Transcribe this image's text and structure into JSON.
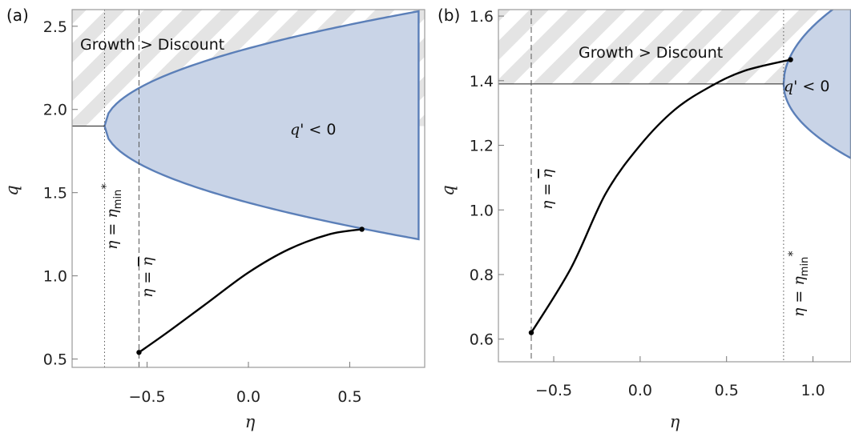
{
  "chart_data": [
    {
      "panel_label": "(a)",
      "type": "line",
      "xlabel": "η",
      "ylabel": "q",
      "xlim": [
        -0.87,
        0.87
      ],
      "ylim": [
        0.45,
        2.6
      ],
      "xticks": [
        "-0.5",
        "0.0",
        "0.5"
      ],
      "xtick_values": [
        -0.5,
        0.0,
        0.5
      ],
      "yticks": [
        "0.5",
        "1.0",
        "1.5",
        "2.0",
        "2.5"
      ],
      "ytick_values": [
        0.5,
        1.0,
        1.5,
        2.0,
        2.5
      ],
      "hatch_label": "Growth > Discount",
      "hatch_threshold_q": 1.9,
      "region_label": "q' < 0",
      "region": {
        "vertex": [
          -0.71,
          1.9
        ],
        "x_end": 0.84,
        "upper_q_at_end": 2.59,
        "lower_q_at_end": 1.22
      },
      "vlines": [
        {
          "x": -0.71,
          "style": "dotted",
          "label": "η = ηmin*"
        },
        {
          "x": -0.54,
          "style": "dashed",
          "label": "η = η̄"
        }
      ],
      "curve": {
        "points": [
          [
            -0.54,
            0.54
          ],
          [
            -0.4,
            0.66
          ],
          [
            -0.2,
            0.84
          ],
          [
            0.0,
            1.02
          ],
          [
            0.2,
            1.16
          ],
          [
            0.4,
            1.25
          ],
          [
            0.56,
            1.28
          ]
        ],
        "start": [
          -0.54,
          0.54
        ],
        "end": [
          0.56,
          1.28
        ]
      }
    },
    {
      "panel_label": "(b)",
      "type": "line",
      "xlabel": "η",
      "ylabel": "q",
      "xlim": [
        -0.82,
        1.22
      ],
      "ylim": [
        0.53,
        1.62
      ],
      "xticks": [
        "-0.5",
        "0.0",
        "0.5",
        "1.0"
      ],
      "xtick_values": [
        -0.5,
        0.0,
        0.5,
        1.0
      ],
      "yticks": [
        "0.6",
        "0.8",
        "1.0",
        "1.2",
        "1.4",
        "1.6"
      ],
      "ytick_values": [
        0.6,
        0.8,
        1.0,
        1.2,
        1.4,
        1.6
      ],
      "hatch_label": "Growth > Discount",
      "hatch_threshold_q": 1.39,
      "region_label": "q' < 0",
      "region": {
        "vertex": [
          0.83,
          1.39
        ],
        "x_end": 1.22,
        "upper_q_at_end": 1.66,
        "lower_q_at_end": 1.16
      },
      "vlines": [
        {
          "x": -0.63,
          "style": "dashed",
          "label": "η = η̄"
        },
        {
          "x": 0.83,
          "style": "dotted",
          "label": "η = ηmin*"
        }
      ],
      "curve": {
        "points": [
          [
            -0.63,
            0.62
          ],
          [
            -0.4,
            0.82
          ],
          [
            -0.2,
            1.05
          ],
          [
            0.0,
            1.2
          ],
          [
            0.2,
            1.31
          ],
          [
            0.4,
            1.38
          ],
          [
            0.6,
            1.43
          ],
          [
            0.87,
            1.465
          ]
        ],
        "start": [
          -0.63,
          0.62
        ],
        "end": [
          0.87,
          1.465
        ]
      }
    }
  ]
}
